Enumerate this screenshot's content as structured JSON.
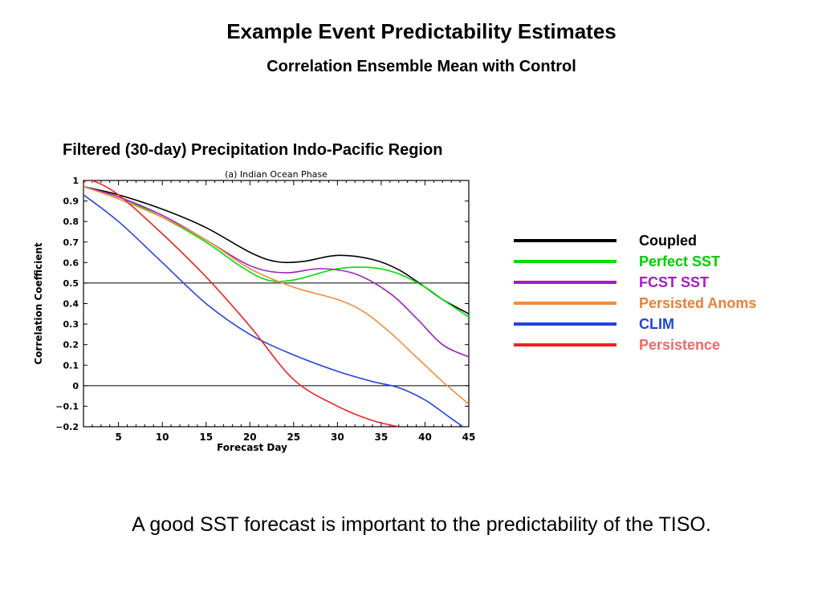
{
  "page": {
    "title": "Example Event Predictability Estimates",
    "subtitle": "Correlation Ensemble Mean with Control",
    "chart_heading": "Filtered (30-day) Precipitation Indo-Pacific Region",
    "caption": "A good SST forecast is important to the predictability of the TISO."
  },
  "chart_data": {
    "type": "line",
    "title": "(a) Indian Ocean Phase",
    "xlabel": "Forecast Day",
    "ylabel": "Correlation Coefficient",
    "xlim": [
      1,
      45
    ],
    "ylim": [
      -0.2,
      1
    ],
    "xticks": [
      5,
      10,
      15,
      20,
      25,
      30,
      35,
      40,
      45
    ],
    "xtick_labels": [
      "5",
      "10",
      "15",
      "20",
      "25",
      "30",
      "35",
      "40",
      "45"
    ],
    "yticks": [
      -0.2,
      -0.1,
      0,
      0.1,
      0.2,
      0.3,
      0.4,
      0.5,
      0.6,
      0.7,
      0.8,
      0.9,
      1
    ],
    "ytick_labels": [
      "−0.2",
      "−0.1",
      "0",
      "0.1",
      "0.2",
      "0.3",
      "0.4",
      "0.5",
      "0.6",
      "0.7",
      "0.8",
      "0.9",
      "1"
    ],
    "reference_lines": [
      0.5,
      0
    ],
    "grid": false,
    "legend_position": "right",
    "series": [
      {
        "name": "Coupled",
        "color": "#000000",
        "x": [
          1,
          5,
          10,
          15,
          20,
          23,
          26,
          30,
          34,
          37,
          40,
          42,
          45
        ],
        "y": [
          0.97,
          0.93,
          0.86,
          0.77,
          0.65,
          0.605,
          0.605,
          0.635,
          0.615,
          0.565,
          0.48,
          0.42,
          0.35
        ]
      },
      {
        "name": "Perfect SST",
        "color": "#00dd00",
        "x": [
          1,
          5,
          10,
          15,
          19,
          22,
          25,
          30,
          34,
          37,
          40,
          42,
          45
        ],
        "y": [
          0.97,
          0.92,
          0.82,
          0.7,
          0.58,
          0.515,
          0.515,
          0.57,
          0.575,
          0.545,
          0.48,
          0.42,
          0.335
        ]
      },
      {
        "name": "FCST SST",
        "color": "#a020c0",
        "x": [
          1,
          5,
          10,
          15,
          20,
          24,
          28,
          32,
          36,
          39,
          42,
          45
        ],
        "y": [
          0.97,
          0.92,
          0.83,
          0.71,
          0.585,
          0.55,
          0.57,
          0.545,
          0.45,
          0.33,
          0.2,
          0.14
        ]
      },
      {
        "name": "Persisted Anoms",
        "color": "#f08c3c",
        "x": [
          1,
          5,
          10,
          15,
          20,
          25,
          30,
          33,
          36,
          39,
          42,
          45
        ],
        "y": [
          0.97,
          0.91,
          0.82,
          0.71,
          0.57,
          0.48,
          0.42,
          0.36,
          0.26,
          0.14,
          0.02,
          -0.09
        ]
      },
      {
        "name": "CLIM",
        "color": "#2244dd",
        "x": [
          1,
          5,
          10,
          15,
          20,
          25,
          30,
          34,
          37,
          40,
          43,
          45
        ],
        "y": [
          0.93,
          0.8,
          0.6,
          0.4,
          0.25,
          0.15,
          0.07,
          0.02,
          -0.01,
          -0.07,
          -0.16,
          -0.22
        ]
      },
      {
        "name": "Persistence",
        "color": "#ee2222",
        "x": [
          1,
          2,
          5,
          10,
          15,
          20,
          25,
          30,
          34,
          37
        ],
        "y": [
          0.99,
          1.0,
          0.93,
          0.74,
          0.53,
          0.29,
          0.03,
          -0.1,
          -0.17,
          -0.2
        ]
      }
    ]
  },
  "legend": {
    "items": [
      {
        "label": "Coupled",
        "line_color": "#000000",
        "text_color": "#000000"
      },
      {
        "label": "Perfect SST",
        "line_color": "#00dd00",
        "text_color": "#00cc00"
      },
      {
        "label": "FCST SST",
        "line_color": "#a020c0",
        "text_color": "#a020c0"
      },
      {
        "label": "Persisted Anoms",
        "line_color": "#f08c3c",
        "text_color": "#e8803a"
      },
      {
        "label": "CLIM",
        "line_color": "#2244dd",
        "text_color": "#2244dd"
      },
      {
        "label": "Persistence",
        "line_color": "#ee2222",
        "text_color": "#ee6a6a"
      }
    ]
  }
}
